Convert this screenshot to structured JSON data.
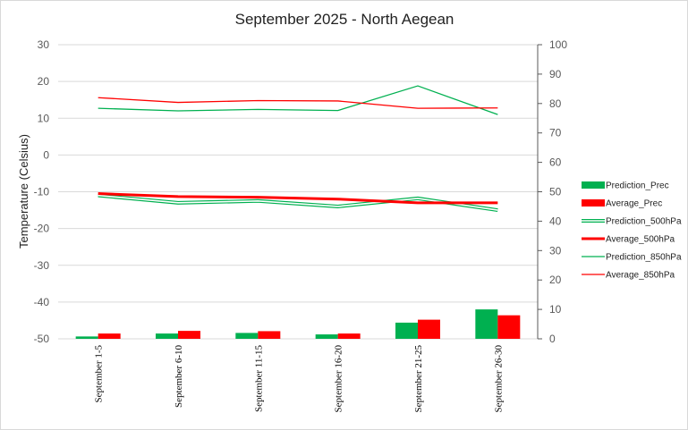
{
  "chart_data": {
    "type": "bar",
    "title": "September 2025 - North Aegean",
    "ylabel": "Temperature (Celsius)",
    "ylim": [
      -50,
      30
    ],
    "y2lim": [
      0,
      100
    ],
    "yticks": [
      -50,
      -40,
      -30,
      -20,
      -10,
      0,
      10,
      20,
      30
    ],
    "y2ticks": [
      0,
      10,
      20,
      30,
      40,
      50,
      60,
      70,
      80,
      90,
      100
    ],
    "categories": [
      "September 1-5",
      "September 6-10",
      "September 11-15",
      "September 16-20",
      "September 21-25",
      "September 26-30"
    ],
    "legend_position": "right",
    "series": [
      {
        "name": "Prediction_Prec",
        "kind": "bar",
        "axis": "y2",
        "color": "#00b050",
        "values": [
          0.8,
          1.8,
          2.0,
          1.5,
          5.5,
          10.0
        ]
      },
      {
        "name": "Average_Prec",
        "kind": "bar",
        "axis": "y2",
        "color": "#ff0000",
        "values": [
          1.8,
          2.7,
          2.6,
          1.8,
          6.5,
          8.0
        ]
      },
      {
        "name": "Prediction_500hPa",
        "kind": "line",
        "style": "double",
        "axis": "y",
        "color": "#00b050",
        "values": [
          -11,
          -13,
          -12.5,
          -14,
          -11.8,
          -15
        ]
      },
      {
        "name": "Average_500hPa",
        "kind": "line",
        "style": "thick",
        "axis": "y",
        "color": "#ff0000",
        "values": [
          -10.5,
          -11.3,
          -11.5,
          -12,
          -13,
          -13
        ]
      },
      {
        "name": "Prediction_850hPa",
        "kind": "line",
        "style": "thin",
        "axis": "y",
        "color": "#00b050",
        "values": [
          12.7,
          12,
          12.4,
          12.1,
          18.8,
          11
        ]
      },
      {
        "name": "Average_850hPa",
        "kind": "line",
        "style": "thin",
        "axis": "y",
        "color": "#ff0000",
        "values": [
          15.6,
          14.3,
          14.8,
          14.7,
          12.7,
          12.8
        ]
      }
    ]
  }
}
